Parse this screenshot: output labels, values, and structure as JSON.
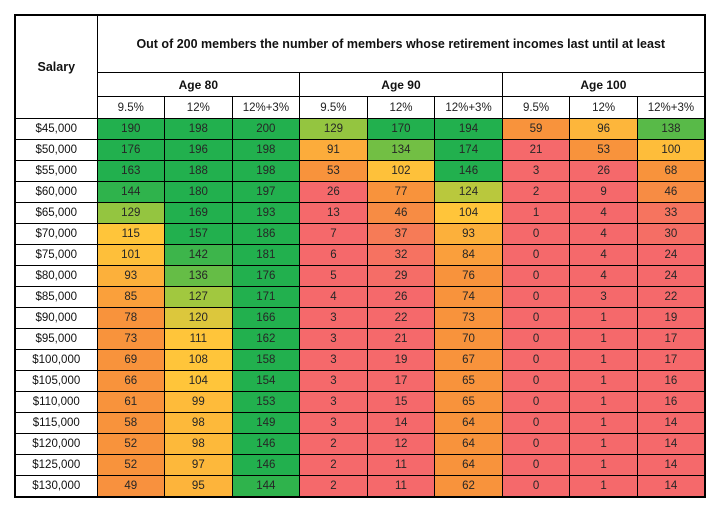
{
  "table": {
    "corner_label": "Salary",
    "title": "Out of 200 members the number of members whose retirement incomes last until at least",
    "age_groups": [
      "Age 80",
      "Age 90",
      "Age 100"
    ],
    "sub_columns": [
      "9.5%",
      "12%",
      "12%+3%"
    ]
  },
  "chart_data": {
    "type": "heatmap",
    "title": "Out of 200 members the number of members whose retirement incomes last until at least",
    "row_header": "Salary",
    "column_groups": [
      "Age 80",
      "Age 90",
      "Age 100"
    ],
    "sub_columns": [
      "9.5%",
      "12%",
      "12%+3%"
    ],
    "columns": [
      "Age 80 9.5%",
      "Age 80 12%",
      "Age 80 12%+3%",
      "Age 90 9.5%",
      "Age 90 12%",
      "Age 90 12%+3%",
      "Age 100 9.5%",
      "Age 100 12%",
      "Age 100 12%+3%"
    ],
    "value_range": [
      0,
      200
    ],
    "rows": [
      {
        "salary": "$45,000",
        "values": [
          190,
          198,
          200,
          129,
          170,
          194,
          59,
          96,
          138
        ]
      },
      {
        "salary": "$50,000",
        "values": [
          176,
          196,
          198,
          91,
          134,
          174,
          21,
          53,
          100
        ]
      },
      {
        "salary": "$55,000",
        "values": [
          163,
          188,
          198,
          53,
          102,
          146,
          3,
          26,
          68
        ]
      },
      {
        "salary": "$60,000",
        "values": [
          144,
          180,
          197,
          26,
          77,
          124,
          2,
          9,
          46
        ]
      },
      {
        "salary": "$65,000",
        "values": [
          129,
          169,
          193,
          13,
          46,
          104,
          1,
          4,
          33
        ]
      },
      {
        "salary": "$70,000",
        "values": [
          115,
          157,
          186,
          7,
          37,
          93,
          0,
          4,
          30
        ]
      },
      {
        "salary": "$75,000",
        "values": [
          101,
          142,
          181,
          6,
          32,
          84,
          0,
          4,
          24
        ]
      },
      {
        "salary": "$80,000",
        "values": [
          93,
          136,
          176,
          5,
          29,
          76,
          0,
          4,
          24
        ]
      },
      {
        "salary": "$85,000",
        "values": [
          85,
          127,
          171,
          4,
          26,
          74,
          0,
          3,
          22
        ]
      },
      {
        "salary": "$90,000",
        "values": [
          78,
          120,
          166,
          3,
          22,
          73,
          0,
          1,
          19
        ]
      },
      {
        "salary": "$95,000",
        "values": [
          73,
          111,
          162,
          3,
          21,
          70,
          0,
          1,
          17
        ]
      },
      {
        "salary": "$100,000",
        "values": [
          69,
          108,
          158,
          3,
          19,
          67,
          0,
          1,
          17
        ]
      },
      {
        "salary": "$105,000",
        "values": [
          66,
          104,
          154,
          3,
          17,
          65,
          0,
          1,
          16
        ]
      },
      {
        "salary": "$110,000",
        "values": [
          61,
          99,
          153,
          3,
          15,
          65,
          0,
          1,
          16
        ]
      },
      {
        "salary": "$115,000",
        "values": [
          58,
          98,
          149,
          3,
          14,
          64,
          0,
          1,
          14
        ]
      },
      {
        "salary": "$120,000",
        "values": [
          52,
          98,
          146,
          2,
          12,
          64,
          0,
          1,
          14
        ]
      },
      {
        "salary": "$125,000",
        "values": [
          52,
          97,
          146,
          2,
          11,
          64,
          0,
          1,
          14
        ]
      },
      {
        "salary": "$130,000",
        "values": [
          49,
          95,
          144,
          2,
          11,
          62,
          0,
          1,
          14
        ]
      }
    ],
    "color_scale": {
      "stops": [
        [
          0,
          "#F5696B"
        ],
        [
          27,
          "#F5696B"
        ],
        [
          50,
          "#F8933C"
        ],
        [
          78,
          "#F8933C"
        ],
        [
          104,
          "#FFC53A"
        ],
        [
          116,
          "#FFC53A"
        ],
        [
          126,
          "#A8C93E"
        ],
        [
          146,
          "#22B04E"
        ],
        [
          200,
          "#22B04E"
        ]
      ]
    }
  },
  "theme": {
    "grid_color": "#000000",
    "background": "#ffffff",
    "header_text_color": "#111111",
    "cell_text_color": "#262626",
    "red": "#F5696B",
    "orange": "#F8933C",
    "yellow": "#FFC53A",
    "yellow_green": "#A8C93E",
    "green": "#22B04E"
  }
}
